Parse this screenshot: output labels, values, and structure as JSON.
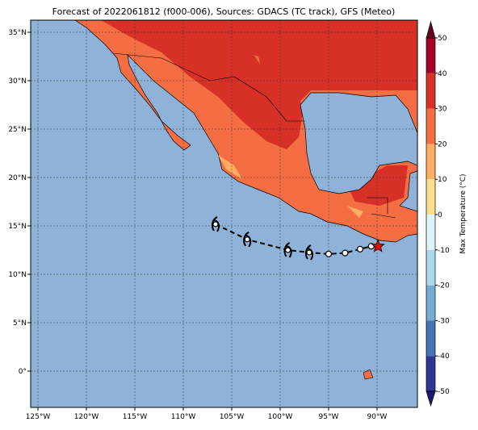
{
  "map": {
    "title": "Forecast of 2022061812 (f000-006), Sources: GDACS (TC track), GFS (Meteo)",
    "xlim": [
      -125.75,
      -85.83
    ],
    "ylim": [
      -3.75,
      36.25
    ],
    "xticks": [
      {
        "value": -125,
        "label": "125°W"
      },
      {
        "value": -120,
        "label": "120°W"
      },
      {
        "value": -115,
        "label": "115°W"
      },
      {
        "value": -110,
        "label": "110°W"
      },
      {
        "value": -105,
        "label": "105°W"
      },
      {
        "value": -100,
        "label": "100°W"
      },
      {
        "value": -95,
        "label": "95°W"
      },
      {
        "value": -90,
        "label": "90°W"
      }
    ],
    "yticks": [
      {
        "value": 0,
        "label": "0°"
      },
      {
        "value": 5,
        "label": "5°N"
      },
      {
        "value": 10,
        "label": "10°N"
      },
      {
        "value": 15,
        "label": "15°N"
      },
      {
        "value": 20,
        "label": "20°N"
      },
      {
        "value": 25,
        "label": "25°N"
      },
      {
        "value": 30,
        "label": "30°N"
      },
      {
        "value": 35,
        "label": "35°N"
      }
    ],
    "grid": true,
    "track": {
      "lon": [
        -106.67,
        -103.4,
        -99.2,
        -97,
        -95,
        -93.3,
        -91.75,
        -90.6,
        -89.9
      ],
      "lat": [
        15.17,
        13.6,
        12.5,
        12.25,
        12.1,
        12.2,
        12.6,
        12.9,
        12.9
      ],
      "storm": [
        true,
        true,
        true,
        true,
        false,
        false,
        false,
        false,
        false
      ]
    }
  },
  "colorbar": {
    "label": "Max Temperature (°C)",
    "lim": [
      -50,
      50
    ],
    "ticks": [
      -50,
      -40,
      -30,
      -20,
      -10,
      0,
      10,
      20,
      30,
      40,
      50
    ],
    "colors": [
      "#313695",
      "#4575b4",
      "#74add1",
      "#abd9e9",
      "#e0f3f8",
      "#fee090",
      "#fdae61",
      "#f46d43",
      "#d73027",
      "#a50026"
    ],
    "under": "#1a1a6e",
    "over": "#67001f"
  }
}
